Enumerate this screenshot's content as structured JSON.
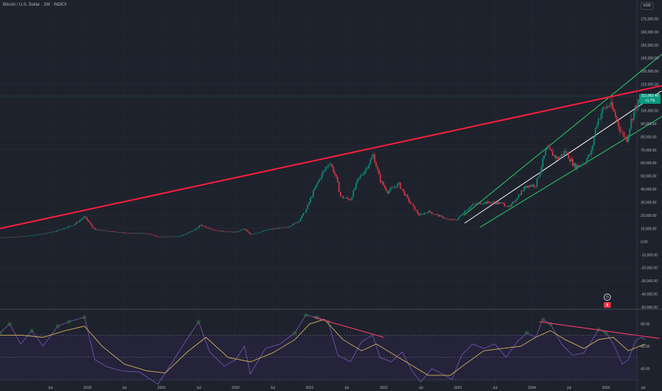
{
  "header": {
    "title": "Bitcoin / U.S. Dollar · 1W · INDEX",
    "currency": "USD"
  },
  "price_tag": {
    "value": "111,062.40",
    "change": "+1.7%"
  },
  "colors": {
    "background": "#1e222d",
    "grid": "#2a2e39",
    "up": "#089981",
    "down": "#f23645",
    "red_trendline": "#ff1e3c",
    "channel": "#2ad66a",
    "midline": "#ffffff",
    "rsi": "#7e57c2",
    "rsi_ma": "#d9b45a",
    "rsi_band": "#2a2546",
    "rsi_divergence": "#ff3b6b"
  },
  "chart_data": [
    {
      "type": "candlestick",
      "title": "Bitcoin / U.S. Dollar · 1W · INDEX",
      "ylim": [
        -50000,
        180000
      ],
      "y_ticks": [
        "170,000.00",
        "160,000.00",
        "150,000.00",
        "140,000.00",
        "130,000.00",
        "120,000.00",
        "110,000.00",
        "100,000.00",
        "90,000.00",
        "80,000.00",
        "70,000.00",
        "60,000.00",
        "50,000.00",
        "40,000.00",
        "30,000.00",
        "20,000.00",
        "10,000.00",
        "0.00",
        "-10,000.00",
        "-20,000.00",
        "-30,000.00",
        "-40,000.00",
        "-50,000.00"
      ],
      "x_ticks": [
        "Jul",
        "2018",
        "Jul",
        "2019",
        "Jul",
        "2020",
        "Jul",
        "2021",
        "Jul",
        "2022",
        "Jul",
        "2023",
        "Jul",
        "2024",
        "Jul",
        "2025",
        "Jul"
      ],
      "x_tick_dates": [
        2017.5,
        2018.0,
        2018.5,
        2019.0,
        2019.5,
        2020.0,
        2020.5,
        2021.0,
        2021.5,
        2022.0,
        2022.5,
        2023.0,
        2023.5,
        2024.0,
        2024.5,
        2025.0,
        2025.5
      ],
      "last_price": 111062.4,
      "key_points": [
        {
          "date": 2016.82,
          "close": 3000
        },
        {
          "date": 2017.0,
          "close": 3500
        },
        {
          "date": 2017.2,
          "close": 4200
        },
        {
          "date": 2017.4,
          "close": 6000
        },
        {
          "date": 2017.55,
          "close": 7500
        },
        {
          "date": 2017.7,
          "close": 10500
        },
        {
          "date": 2017.82,
          "close": 13000
        },
        {
          "date": 2017.96,
          "close": 19000
        },
        {
          "date": 2018.1,
          "close": 9000
        },
        {
          "date": 2018.3,
          "close": 8000
        },
        {
          "date": 2018.5,
          "close": 6500
        },
        {
          "date": 2018.8,
          "close": 6300
        },
        {
          "date": 2018.95,
          "close": 3600
        },
        {
          "date": 2019.25,
          "close": 4000
        },
        {
          "date": 2019.45,
          "close": 9000
        },
        {
          "date": 2019.52,
          "close": 12500
        },
        {
          "date": 2019.75,
          "close": 8200
        },
        {
          "date": 2020.0,
          "close": 7200
        },
        {
          "date": 2020.12,
          "close": 9800
        },
        {
          "date": 2020.2,
          "close": 5200
        },
        {
          "date": 2020.45,
          "close": 9300
        },
        {
          "date": 2020.7,
          "close": 11000
        },
        {
          "date": 2020.85,
          "close": 15500
        },
        {
          "date": 2020.95,
          "close": 24000
        },
        {
          "date": 2021.05,
          "close": 38000
        },
        {
          "date": 2021.15,
          "close": 50000
        },
        {
          "date": 2021.27,
          "close": 61000
        },
        {
          "date": 2021.35,
          "close": 50000
        },
        {
          "date": 2021.42,
          "close": 34000
        },
        {
          "date": 2021.55,
          "close": 32000
        },
        {
          "date": 2021.65,
          "close": 47000
        },
        {
          "date": 2021.75,
          "close": 55000
        },
        {
          "date": 2021.86,
          "close": 66000
        },
        {
          "date": 2021.95,
          "close": 47000
        },
        {
          "date": 2022.05,
          "close": 38000
        },
        {
          "date": 2022.2,
          "close": 44000
        },
        {
          "date": 2022.35,
          "close": 30000
        },
        {
          "date": 2022.48,
          "close": 20000
        },
        {
          "date": 2022.6,
          "close": 23000
        },
        {
          "date": 2022.75,
          "close": 19500
        },
        {
          "date": 2022.88,
          "close": 16500
        },
        {
          "date": 2022.99,
          "close": 16800
        },
        {
          "date": 2023.08,
          "close": 23000
        },
        {
          "date": 2023.2,
          "close": 28000
        },
        {
          "date": 2023.3,
          "close": 29500
        },
        {
          "date": 2023.45,
          "close": 30000
        },
        {
          "date": 2023.6,
          "close": 29000
        },
        {
          "date": 2023.7,
          "close": 26000
        },
        {
          "date": 2023.8,
          "close": 34000
        },
        {
          "date": 2023.93,
          "close": 43000
        },
        {
          "date": 2024.05,
          "close": 43000
        },
        {
          "date": 2024.15,
          "close": 62000
        },
        {
          "date": 2024.2,
          "close": 71000
        },
        {
          "date": 2024.35,
          "close": 63000
        },
        {
          "date": 2024.45,
          "close": 69000
        },
        {
          "date": 2024.58,
          "close": 57000
        },
        {
          "date": 2024.7,
          "close": 60000
        },
        {
          "date": 2024.8,
          "close": 68000
        },
        {
          "date": 2024.87,
          "close": 90000
        },
        {
          "date": 2024.95,
          "close": 100000
        },
        {
          "date": 2025.05,
          "close": 105000
        },
        {
          "date": 2025.12,
          "close": 97000
        },
        {
          "date": 2025.2,
          "close": 84000
        },
        {
          "date": 2025.28,
          "close": 78000
        },
        {
          "date": 2025.35,
          "close": 95000
        },
        {
          "date": 2025.42,
          "close": 105000
        },
        {
          "date": 2025.47,
          "close": 106000
        },
        {
          "date": 2025.5,
          "close": 108000
        },
        {
          "date": 2025.53,
          "close": 111062
        }
      ],
      "trendlines": [
        {
          "name": "resistance",
          "color": "red",
          "points": [
            [
              2016.82,
              10000
            ],
            [
              2025.8,
              119500
            ]
          ]
        },
        {
          "name": "channel-upper",
          "color": "green",
          "points": [
            [
              2023.08,
              20000
            ],
            [
              2025.8,
              145000
            ]
          ]
        },
        {
          "name": "channel-mid",
          "color": "white",
          "points": [
            [
              2023.09,
              14000
            ],
            [
              2025.75,
              115000
            ]
          ]
        },
        {
          "name": "channel-lower",
          "color": "green",
          "points": [
            [
              2023.3,
              11000
            ],
            [
              2025.8,
              97000
            ]
          ]
        }
      ]
    },
    {
      "type": "line",
      "ylim": [
        25,
        90
      ],
      "y_ticks": [
        "80.00",
        "60.00",
        "40.00"
      ],
      "overbought": 70,
      "oversold": 30,
      "mid": 50,
      "series": [
        {
          "name": "",
          "values": [
            [
              2016.82,
              72
            ],
            [
              2016.95,
              80
            ],
            [
              2017.1,
              62
            ],
            [
              2017.25,
              74
            ],
            [
              2017.4,
              60
            ],
            [
              2017.6,
              78
            ],
            [
              2017.75,
              82
            ],
            [
              2017.96,
              86
            ],
            [
              2018.1,
              48
            ],
            [
              2018.25,
              42
            ],
            [
              2018.45,
              38
            ],
            [
              2018.7,
              37
            ],
            [
              2018.95,
              26
            ],
            [
              2019.15,
              46
            ],
            [
              2019.3,
              62
            ],
            [
              2019.5,
              82
            ],
            [
              2019.65,
              55
            ],
            [
              2019.85,
              42
            ],
            [
              2020.0,
              48
            ],
            [
              2020.12,
              60
            ],
            [
              2020.2,
              35
            ],
            [
              2020.4,
              58
            ],
            [
              2020.6,
              62
            ],
            [
              2020.8,
              72
            ],
            [
              2020.95,
              88
            ],
            [
              2021.1,
              86
            ],
            [
              2021.25,
              82
            ],
            [
              2021.38,
              52
            ],
            [
              2021.55,
              46
            ],
            [
              2021.7,
              64
            ],
            [
              2021.85,
              70
            ],
            [
              2021.95,
              50
            ],
            [
              2022.1,
              46
            ],
            [
              2022.25,
              55
            ],
            [
              2022.38,
              38
            ],
            [
              2022.5,
              28
            ],
            [
              2022.65,
              40
            ],
            [
              2022.8,
              35
            ],
            [
              2022.92,
              30
            ],
            [
              2023.05,
              52
            ],
            [
              2023.2,
              62
            ],
            [
              2023.35,
              58
            ],
            [
              2023.5,
              62
            ],
            [
              2023.65,
              50
            ],
            [
              2023.8,
              64
            ],
            [
              2023.93,
              72
            ],
            [
              2024.05,
              68
            ],
            [
              2024.15,
              84
            ],
            [
              2024.25,
              80
            ],
            [
              2024.4,
              62
            ],
            [
              2024.55,
              52
            ],
            [
              2024.7,
              54
            ],
            [
              2024.8,
              64
            ],
            [
              2024.9,
              75
            ],
            [
              2025.0,
              72
            ],
            [
              2025.1,
              62
            ],
            [
              2025.22,
              44
            ],
            [
              2025.3,
              48
            ],
            [
              2025.4,
              65
            ],
            [
              2025.48,
              68
            ],
            [
              2025.53,
              66
            ]
          ]
        },
        {
          "name": "",
          "values": [
            [
              2016.82,
              70
            ],
            [
              2017.1,
              70
            ],
            [
              2017.4,
              68
            ],
            [
              2017.7,
              74
            ],
            [
              2017.96,
              78
            ],
            [
              2018.2,
              60
            ],
            [
              2018.5,
              44
            ],
            [
              2018.8,
              38
            ],
            [
              2019.05,
              36
            ],
            [
              2019.35,
              55
            ],
            [
              2019.6,
              68
            ],
            [
              2019.9,
              50
            ],
            [
              2020.2,
              46
            ],
            [
              2020.5,
              54
            ],
            [
              2020.8,
              66
            ],
            [
              2021.0,
              80
            ],
            [
              2021.2,
              84
            ],
            [
              2021.45,
              66
            ],
            [
              2021.7,
              56
            ],
            [
              2021.9,
              62
            ],
            [
              2022.15,
              52
            ],
            [
              2022.4,
              42
            ],
            [
              2022.6,
              34
            ],
            [
              2022.9,
              34
            ],
            [
              2023.1,
              44
            ],
            [
              2023.35,
              56
            ],
            [
              2023.6,
              58
            ],
            [
              2023.85,
              60
            ],
            [
              2024.05,
              68
            ],
            [
              2024.25,
              74
            ],
            [
              2024.45,
              66
            ],
            [
              2024.7,
              58
            ],
            [
              2024.9,
              66
            ],
            [
              2025.1,
              68
            ],
            [
              2025.3,
              56
            ],
            [
              2025.45,
              60
            ],
            [
              2025.53,
              62
            ]
          ]
        }
      ],
      "trendlines": [
        {
          "name": "divergence-1",
          "points": [
            [
              2021.05,
              86
            ],
            [
              2022.0,
              68
            ]
          ]
        },
        {
          "name": "divergence-2",
          "points": [
            [
              2024.1,
              82
            ],
            [
              2025.72,
              67
            ]
          ]
        }
      ]
    }
  ]
}
